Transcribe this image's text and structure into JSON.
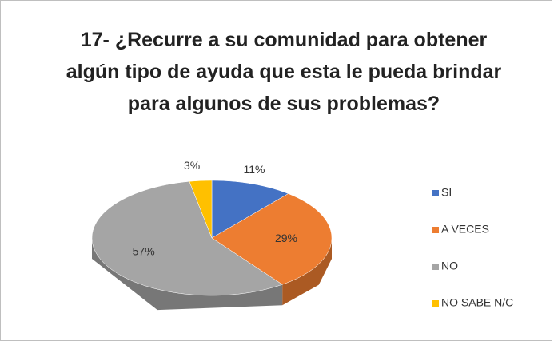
{
  "chart_data": {
    "type": "pie3d",
    "title": "17- ¿Recurre a su comunidad para obtener algún tipo de ayuda que esta le pueda brindar para algunos de sus problemas?",
    "categories": [
      "SI",
      "A VECES",
      "NO",
      "NO SABE N/C"
    ],
    "values": [
      11,
      29,
      57,
      3
    ],
    "value_labels": [
      "11%",
      "29%",
      "57%",
      "3%"
    ],
    "colors": [
      "#4472c4",
      "#ed7d31",
      "#a5a5a5",
      "#ffc000"
    ],
    "legend": "right"
  }
}
